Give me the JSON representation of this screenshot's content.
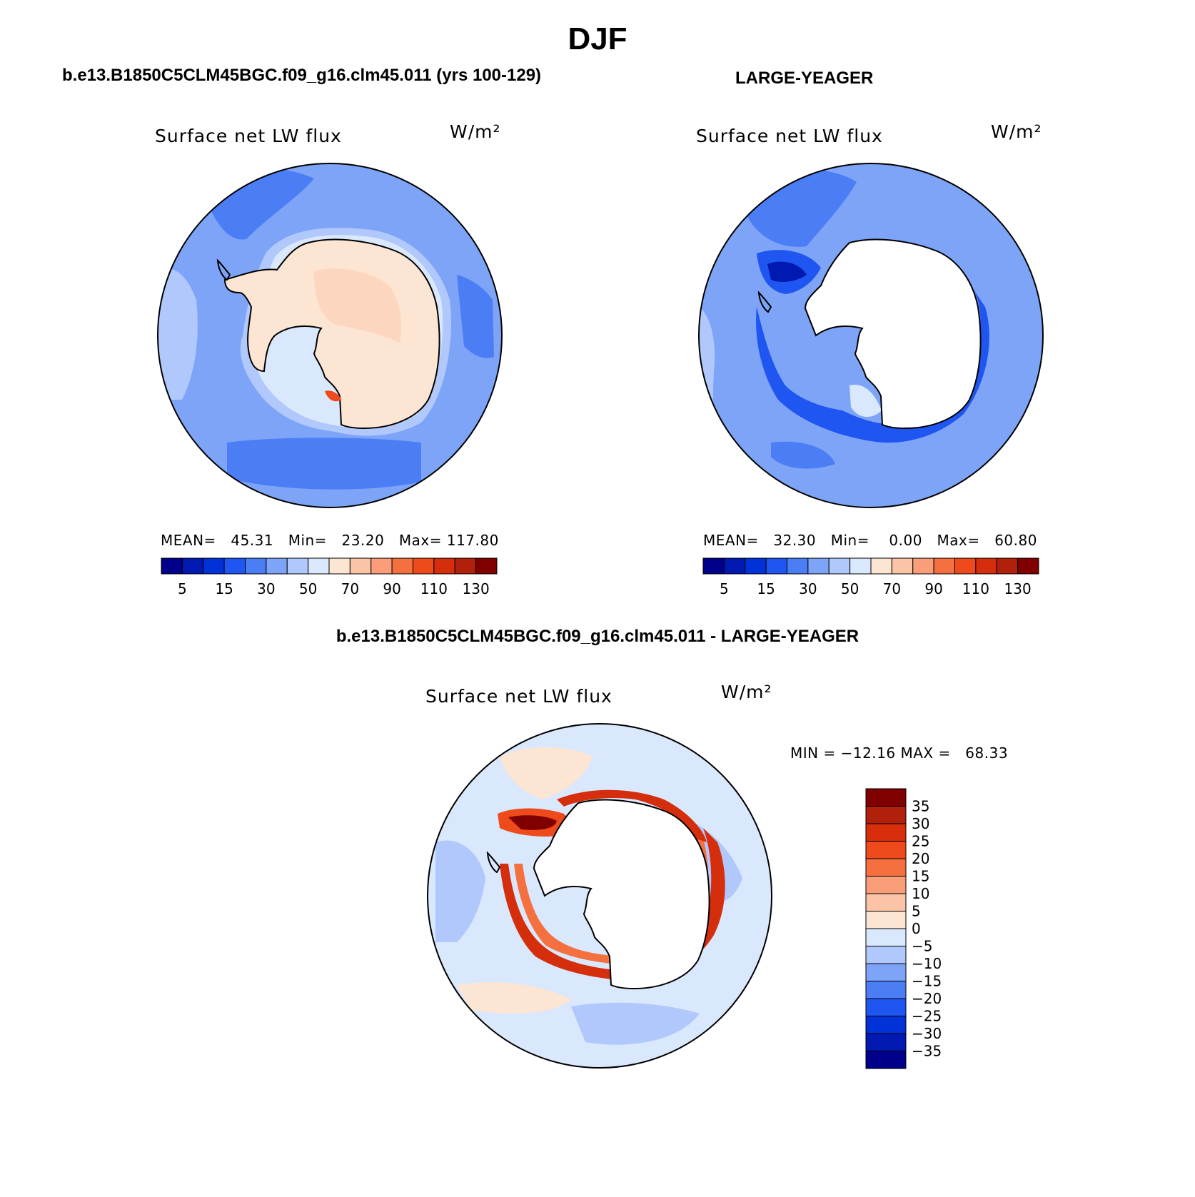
{
  "title": "DJF",
  "panels": [
    {
      "id": "model",
      "header": "b.e13.B1850C5CLM45BGC.f09_g16.clm45.011 (yrs 100-129)",
      "variable": "Surface net LW flux",
      "units": "W/m²",
      "stats": {
        "mean_label": "MEAN=",
        "mean": "45.31",
        "min_label": "Min=",
        "min": "23.20",
        "max_label": "Max=",
        "max": "117.80"
      }
    },
    {
      "id": "obs",
      "header": "LARGE-YEAGER",
      "variable": "Surface net LW flux",
      "units": "W/m²",
      "stats": {
        "mean_label": "MEAN=",
        "mean": "32.30",
        "min_label": "Min=",
        "min": "0.00",
        "max_label": "Max=",
        "max": "60.80"
      }
    },
    {
      "id": "diff",
      "header": "b.e13.B1850C5CLM45BGC.f09_g16.clm45.011 - LARGE-YEAGER",
      "variable": "Surface net LW flux",
      "units": "W/m²",
      "stats_text": "MIN = −12.16 MAX =   68.33"
    }
  ],
  "colorbar_abs": {
    "colors": [
      "#00008a",
      "#0019b0",
      "#0032d8",
      "#1f55f0",
      "#4b7df5",
      "#7ea4f8",
      "#b0c8fb",
      "#d9e8fc",
      "#fde5d3",
      "#fcc4a6",
      "#f99e78",
      "#f5703f",
      "#ee4a1c",
      "#d42e0c",
      "#b0200a",
      "#800000"
    ],
    "tick_labels": [
      "5",
      "15",
      "30",
      "50",
      "70",
      "90",
      "110",
      "130"
    ]
  },
  "colorbar_diff": {
    "colors": [
      "#800000",
      "#b0200a",
      "#d92e0b",
      "#ee4a1c",
      "#f5703f",
      "#f99e78",
      "#fcc4a6",
      "#fde5d3",
      "#d9e8fc",
      "#b0c8fb",
      "#7ea4f8",
      "#4b7df5",
      "#1f55f0",
      "#0032d8",
      "#0019b0",
      "#00008a"
    ],
    "tick_labels": [
      "35",
      "30",
      "25",
      "20",
      "15",
      "10",
      "5",
      "0",
      "−5",
      "−10",
      "−15",
      "−20",
      "−25",
      "−30",
      "−35"
    ]
  }
}
